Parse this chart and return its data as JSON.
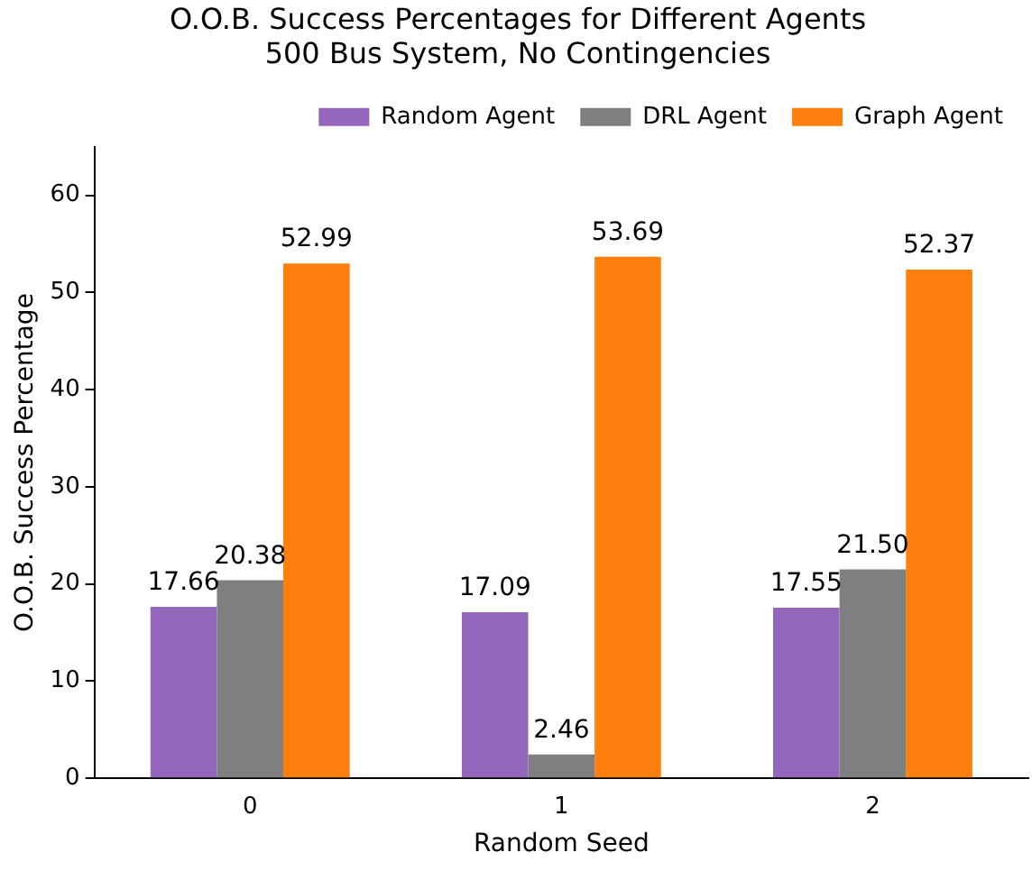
{
  "chart_data": {
    "type": "bar",
    "title": "O.O.B. Success Percentages for Different Agents",
    "subtitle": "500 Bus System, No Contingencies",
    "xlabel": "Random Seed",
    "ylabel": "O.O.B. Success Percentage",
    "categories": [
      "0",
      "1",
      "2"
    ],
    "series": [
      {
        "name": "Random Agent",
        "color": "#9467bd",
        "values": [
          17.66,
          17.09,
          17.55
        ],
        "value_labels": [
          "17.66",
          "17.09",
          "17.55"
        ]
      },
      {
        "name": "DRL Agent",
        "color": "#7f7f7f",
        "values": [
          20.38,
          2.46,
          21.5
        ],
        "value_labels": [
          "20.38",
          "2.46",
          "21.50"
        ]
      },
      {
        "name": "Graph Agent",
        "color": "#ff7f0e",
        "values": [
          52.99,
          53.69,
          52.37
        ],
        "value_labels": [
          "52.99",
          "53.69",
          "52.37"
        ]
      }
    ],
    "ylim": [
      0,
      65
    ],
    "yticks": [
      0,
      10,
      20,
      30,
      40,
      50,
      60
    ],
    "grid": false,
    "legend": "top right"
  }
}
